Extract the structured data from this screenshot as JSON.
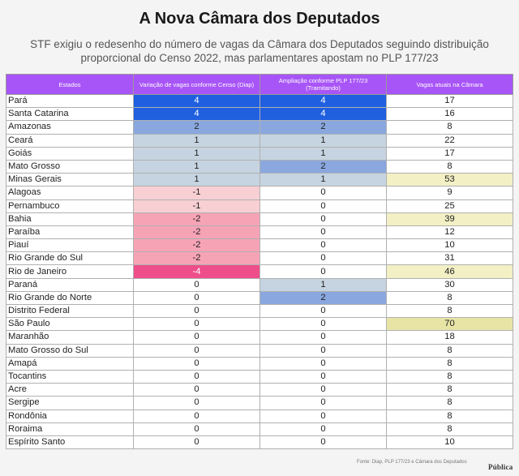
{
  "title": "A Nova Câmara dos Deputados",
  "subtitle": "STF exigiu o redesenho do número de vagas da Câmara dos Deputados seguindo distribuição proporcional do Censo 2022, mas parlamentares apostam no PLP 177/23",
  "chart_data": {
    "type": "table",
    "columns": [
      "Estados",
      "Variação de vagas conforme Censo (Diap)",
      "Ampliação conforme PLP 177/23 (Tramitando)",
      "Vagas atuais na Câmara"
    ],
    "rows": [
      [
        "Pará",
        4,
        4,
        17
      ],
      [
        "Santa Catarina",
        4,
        4,
        16
      ],
      [
        "Amazonas",
        2,
        2,
        8
      ],
      [
        "Ceará",
        1,
        1,
        22
      ],
      [
        "Goiás",
        1,
        1,
        17
      ],
      [
        "Mato Grosso",
        1,
        2,
        8
      ],
      [
        "Minas Gerais",
        1,
        1,
        53
      ],
      [
        "Alagoas",
        -1,
        0,
        9
      ],
      [
        "Pernambuco",
        -1,
        0,
        25
      ],
      [
        "Bahia",
        -2,
        0,
        39
      ],
      [
        "Paraíba",
        -2,
        0,
        12
      ],
      [
        "Piauí",
        -2,
        0,
        10
      ],
      [
        "Rio Grande do Sul",
        -2,
        0,
        31
      ],
      [
        "Rio de Janeiro",
        -4,
        0,
        46
      ],
      [
        "Paraná",
        0,
        1,
        30
      ],
      [
        "Rio Grande do Norte",
        0,
        2,
        8
      ],
      [
        "Distrito Federal",
        0,
        0,
        8
      ],
      [
        "São Paulo",
        0,
        0,
        70
      ],
      [
        "Maranhão",
        0,
        0,
        18
      ],
      [
        "Mato Grosso do Sul",
        0,
        0,
        8
      ],
      [
        "Amapá",
        0,
        0,
        8
      ],
      [
        "Tocantins",
        0,
        0,
        8
      ],
      [
        "Acre",
        0,
        0,
        8
      ],
      [
        "Sergipe",
        0,
        0,
        8
      ],
      [
        "Rondônia",
        0,
        0,
        8
      ],
      [
        "Roraima",
        0,
        0,
        8
      ],
      [
        "Espírito Santo",
        0,
        0,
        10
      ]
    ],
    "colors": {
      "header": "#a855f7",
      "plus4": "#1f5fe0",
      "plus2": "#8aa8df",
      "plus1": "#c5d4e0",
      "minus1": "#f8cfd3",
      "minus2": "#f7a3b6",
      "minus4": "#ee4f8a",
      "current_high": "#f2f0c4",
      "current_top": "#e8e4a6"
    }
  },
  "footer": {
    "source": "Fonte: Diap, PLP 177/23 e Câmara dos Deputados",
    "logo": "Pública"
  }
}
